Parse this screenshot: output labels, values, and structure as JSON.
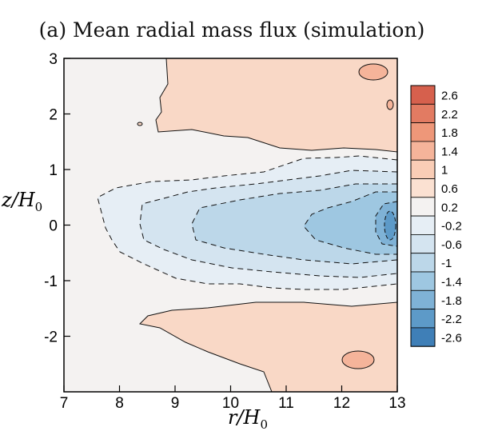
{
  "chart_data": {
    "type": "contour",
    "title": "(a) Mean radial mass flux (simulation)",
    "xlabel": "r/H",
    "xlabel_sub": "0",
    "ylabel": "z/H",
    "ylabel_sub": "0",
    "xlim": [
      7,
      13
    ],
    "ylim": [
      -3,
      3
    ],
    "xticks": [
      7,
      8,
      9,
      10,
      11,
      12,
      13
    ],
    "xtick_labels": [
      "7",
      "8",
      "9",
      "10",
      "11",
      "12",
      "13"
    ],
    "yticks": [
      -2,
      -1,
      0,
      1,
      2,
      3
    ],
    "ytick_labels": [
      "-2",
      "-1",
      "0",
      "1",
      "2",
      "3"
    ],
    "colorbar": {
      "levels": [
        2.6,
        2.2,
        1.8,
        1.4,
        1,
        0.6,
        0.2,
        -0.2,
        -0.6,
        -1,
        -1.4,
        -1.8,
        -2.2,
        -2.6
      ],
      "labels": [
        "2.6",
        "2.2",
        "1.8",
        "1.4",
        "1",
        "0.6",
        "0.2",
        "-0.2",
        "-0.6",
        "-1",
        "-1.4",
        "-1.8",
        "-2.2",
        "-2.6"
      ],
      "colors": [
        "#d6604d",
        "#e27b62",
        "#ee9779",
        "#f5b49a",
        "#f9cdb6",
        "#fbe1d2",
        "#f4f2f1",
        "#e6eef5",
        "#d4e4f0",
        "#bcd7e9",
        "#9ec7e1",
        "#7fb2d6",
        "#5d9ac8",
        "#3f7fb7"
      ]
    },
    "regions": [
      {
        "name": "upper positive lobe",
        "level": 0.2
      },
      {
        "name": "lower positive lobe",
        "level": 0.2
      },
      {
        "name": "central negative core",
        "level": -0.2
      },
      {
        "name": "inner negative core",
        "level": -0.6
      },
      {
        "name": "deep negative core",
        "level": -1
      },
      {
        "name": "deepest negative core",
        "level": -1.4
      }
    ]
  }
}
